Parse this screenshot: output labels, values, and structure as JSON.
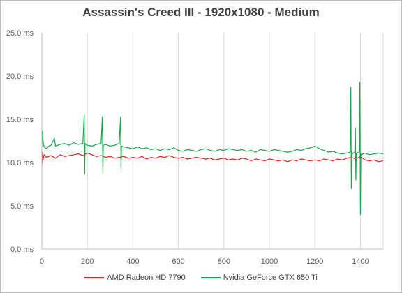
{
  "chart_data": {
    "type": "line",
    "title": "Assassin's Creed III - 1920x1080 - Medium",
    "xlabel": "",
    "ylabel": "",
    "xlim": [
      0,
      1500
    ],
    "ylim": [
      0,
      25
    ],
    "x_ticks": [
      0,
      200,
      400,
      600,
      800,
      1000,
      1200,
      1400
    ],
    "x_tick_labels": [
      "0",
      "200",
      "400",
      "600",
      "800",
      "1000",
      "1200",
      "1400"
    ],
    "y_ticks": [
      0,
      5,
      10,
      15,
      20,
      25
    ],
    "y_tick_labels": [
      "0.0 ms",
      "5.0 ms",
      "10.0 ms",
      "15.0 ms",
      "20.0 ms",
      "25.0 ms"
    ],
    "grid": "vertical",
    "legend_position": "bottom",
    "series": [
      {
        "name": "AMD Radeon HD 7790",
        "color": "#e8201c",
        "x": [
          0,
          2,
          5,
          10,
          20,
          40,
          60,
          80,
          100,
          120,
          140,
          160,
          180,
          200,
          220,
          240,
          260,
          280,
          300,
          320,
          340,
          360,
          380,
          400,
          420,
          440,
          460,
          480,
          500,
          520,
          540,
          560,
          580,
          600,
          620,
          640,
          660,
          680,
          700,
          720,
          740,
          760,
          780,
          800,
          820,
          840,
          860,
          880,
          900,
          920,
          940,
          960,
          980,
          1000,
          1020,
          1040,
          1060,
          1080,
          1100,
          1120,
          1140,
          1160,
          1180,
          1200,
          1220,
          1240,
          1260,
          1280,
          1300,
          1320,
          1340,
          1360,
          1380,
          1400,
          1420,
          1440,
          1460,
          1480,
          1500
        ],
        "y": [
          9.6,
          11.2,
          10.3,
          10.9,
          10.6,
          10.8,
          10.5,
          10.9,
          10.7,
          10.8,
          10.9,
          11.0,
          10.8,
          11.1,
          10.9,
          10.7,
          10.8,
          10.6,
          10.7,
          10.5,
          10.6,
          10.7,
          10.5,
          10.6,
          10.5,
          10.7,
          10.4,
          10.6,
          10.5,
          10.7,
          10.6,
          10.8,
          10.6,
          10.5,
          10.6,
          10.4,
          10.5,
          10.6,
          10.5,
          10.4,
          10.5,
          10.3,
          10.4,
          10.5,
          10.3,
          10.4,
          10.3,
          10.5,
          10.4,
          10.2,
          10.4,
          10.3,
          10.2,
          10.4,
          10.3,
          10.2,
          10.3,
          10.1,
          10.3,
          10.2,
          10.4,
          10.3,
          10.2,
          10.3,
          10.2,
          10.4,
          10.3,
          10.2,
          10.4,
          10.3,
          10.5,
          10.6,
          10.4,
          10.7,
          10.3,
          10.2,
          10.3,
          10.1,
          10.2
        ]
      },
      {
        "name": "Nvidia GeForce GTX 650 Ti",
        "color": "#1aa64a",
        "x": [
          0,
          3,
          6,
          10,
          20,
          30,
          40,
          55,
          60,
          80,
          100,
          120,
          140,
          160,
          180,
          186,
          188,
          190,
          200,
          220,
          240,
          260,
          266,
          268,
          270,
          280,
          300,
          320,
          340,
          346,
          348,
          350,
          360,
          380,
          400,
          420,
          440,
          460,
          480,
          500,
          520,
          540,
          560,
          580,
          600,
          620,
          640,
          660,
          680,
          700,
          720,
          740,
          760,
          780,
          800,
          820,
          840,
          860,
          880,
          900,
          920,
          940,
          960,
          980,
          1000,
          1020,
          1040,
          1060,
          1080,
          1100,
          1120,
          1140,
          1160,
          1180,
          1200,
          1220,
          1240,
          1260,
          1280,
          1300,
          1320,
          1340,
          1355,
          1358,
          1360,
          1362,
          1365,
          1375,
          1378,
          1380,
          1382,
          1385,
          1395,
          1398,
          1400,
          1402,
          1405,
          1420,
          1440,
          1460,
          1480,
          1500
        ],
        "y": [
          11.8,
          13.6,
          12.2,
          11.8,
          11.6,
          11.9,
          12.0,
          12.8,
          11.9,
          12.1,
          12.2,
          12.0,
          12.3,
          12.1,
          12.2,
          15.5,
          8.7,
          12.2,
          12.0,
          11.9,
          12.1,
          12.2,
          15.3,
          8.8,
          12.0,
          12.1,
          11.9,
          12.0,
          12.2,
          15.3,
          9.3,
          11.9,
          11.8,
          11.7,
          11.6,
          11.8,
          11.6,
          11.7,
          11.5,
          11.6,
          11.4,
          11.6,
          11.5,
          11.7,
          11.4,
          11.3,
          11.5,
          11.4,
          11.3,
          11.5,
          11.6,
          11.4,
          11.3,
          11.5,
          11.4,
          11.6,
          11.5,
          11.4,
          11.5,
          11.3,
          11.4,
          11.2,
          11.5,
          11.4,
          11.3,
          11.5,
          11.4,
          11.3,
          11.2,
          11.3,
          11.5,
          11.4,
          11.6,
          11.7,
          11.9,
          11.6,
          11.4,
          11.2,
          11.3,
          11.1,
          11.0,
          11.1,
          11.2,
          18.7,
          7.0,
          11.2,
          11.0,
          11.2,
          14.0,
          8.0,
          11.0,
          11.1,
          11.2,
          19.3,
          4.0,
          11.0,
          10.9,
          11.1,
          10.9,
          11.0,
          11.1,
          11.0
        ]
      }
    ]
  }
}
